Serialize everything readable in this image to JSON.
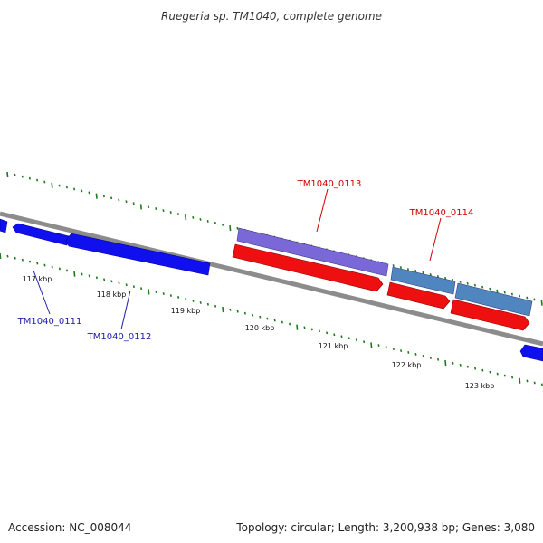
{
  "title": "Ruegeria sp. TM1040, complete genome",
  "footer": {
    "accession": "Accession: NC_008044",
    "summary": "Topology: circular; Length: 3,200,938 bp; Genes: 3,080"
  },
  "colors": {
    "backbone": "#8c8c8c",
    "forward_gene": "#1010ee",
    "reverse_cds": "#ee1010",
    "feature_purple": "#7b68d8",
    "feature_steel": "#4f86c0",
    "tick": "#1f7a1f",
    "label_blue": "#1a1aa6",
    "label_red": "#cc0000"
  },
  "ticks": {
    "labels": [
      "117 kbp",
      "118 kbp",
      "119 kbp",
      "120 kbp",
      "121 kbp",
      "122 kbp",
      "123 kbp"
    ]
  },
  "gene_labels": {
    "g0111": "TM1040_0111",
    "g0112": "TM1040_0112",
    "g0113": "TM1040_0113",
    "g0114": "TM1040_0114"
  }
}
